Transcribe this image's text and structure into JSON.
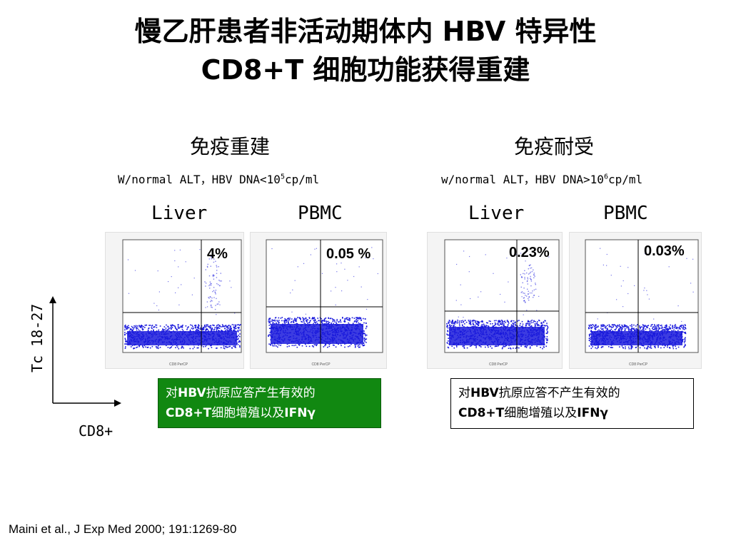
{
  "title": {
    "line1": "慢乙肝患者非活动期体内 HBV 特异性",
    "line2": "CD8+T 细胞功能获得重建"
  },
  "groups": [
    {
      "heading": "免疫重建",
      "condition_prefix": "W/normal ALT，HBV DNA<10",
      "condition_exp": "5",
      "condition_suffix": "cp/ml",
      "plots": [
        {
          "label": "Liver",
          "percent": "4%",
          "xaxis": "CD8 PerCP"
        },
        {
          "label": "PBMC",
          "percent": "0.05 %",
          "xaxis": "CD8 PerCP"
        }
      ],
      "note_line1_prefix": "对",
      "note_line1_bold": "HBV",
      "note_line1_suffix": "抗原应答产生有效的",
      "note_line2_bold": "CD8+T",
      "note_line2_mid": "细胞增殖以及",
      "note_line2_bold2": "IFNγ"
    },
    {
      "heading": "免疫耐受",
      "condition_prefix": "w/normal ALT，HBV DNA>10",
      "condition_exp": "6",
      "condition_suffix": "cp/ml",
      "plots": [
        {
          "label": "Liver",
          "percent": "0.23%",
          "xaxis": "CD8 PerCP"
        },
        {
          "label": "PBMC",
          "percent": "0.03%",
          "xaxis": "CD8 PerCP"
        }
      ],
      "note_line1_prefix": "对",
      "note_line1_bold": "HBV",
      "note_line1_suffix": "抗原应答不产生有效的",
      "note_line2_bold": "CD8+T",
      "note_line2_mid": "细胞增殖以及",
      "note_line2_bold2": "IFNγ"
    }
  ],
  "axes": {
    "y_label": "Tc 18-27",
    "x_label": "CD8+"
  },
  "citation": "Maini et al., J Exp Med 2000; 191:1269-80",
  "colors": {
    "dots": "#1a1adc",
    "green_box": "#118811"
  }
}
